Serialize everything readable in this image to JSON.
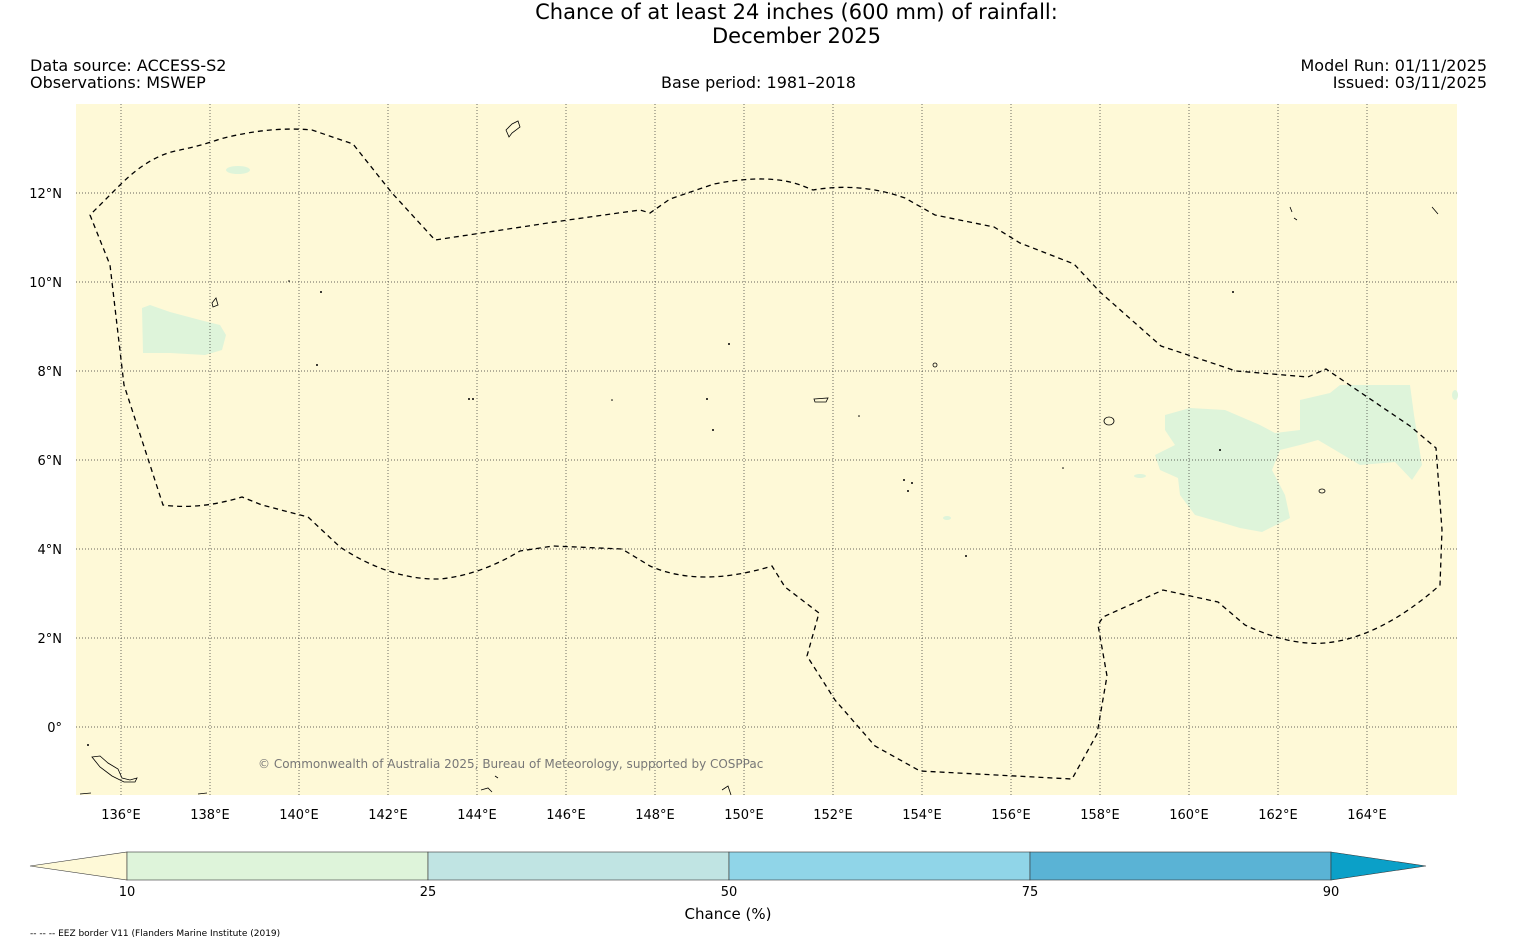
{
  "header": {
    "title_line1": "Chance of at least 24 inches (600  mm) of rainfall:",
    "title_line2": "December 2025",
    "data_source": "Data source: ACCESS-S2",
    "observations": "Observations: MSWEP",
    "base_period": "Base period: 1981–2018",
    "model_run": "Model Run: 01/11/2025",
    "issued": "Issued: 03/11/2025"
  },
  "map": {
    "copyright": "© Commonwealth of Australia 2025, Bureau of Meteorology, supported by COSPPac",
    "lon_labels": [
      "136°E",
      "138°E",
      "140°E",
      "142°E",
      "144°E",
      "146°E",
      "148°E",
      "150°E",
      "152°E",
      "154°E",
      "156°E",
      "158°E",
      "160°E",
      "162°E",
      "164°E"
    ],
    "lat_labels": [
      "12°N",
      "10°N",
      "8°N",
      "6°N",
      "4°N",
      "2°N",
      "0°"
    ],
    "ocean_color": "#fef9d7",
    "low_chance_color": "#def4da"
  },
  "colorbar": {
    "title": "Chance (%)",
    "ticks": [
      "10",
      "25",
      "50",
      "75",
      "90"
    ],
    "colors": [
      "#fef9d7",
      "#def4da",
      "#c0e4e3",
      "#90d5e8",
      "#5ab3d5",
      "#0ba0c8"
    ]
  },
  "footnote": "-- -- -- EEZ border V11 (Flanders Marine Institute (2019)"
}
